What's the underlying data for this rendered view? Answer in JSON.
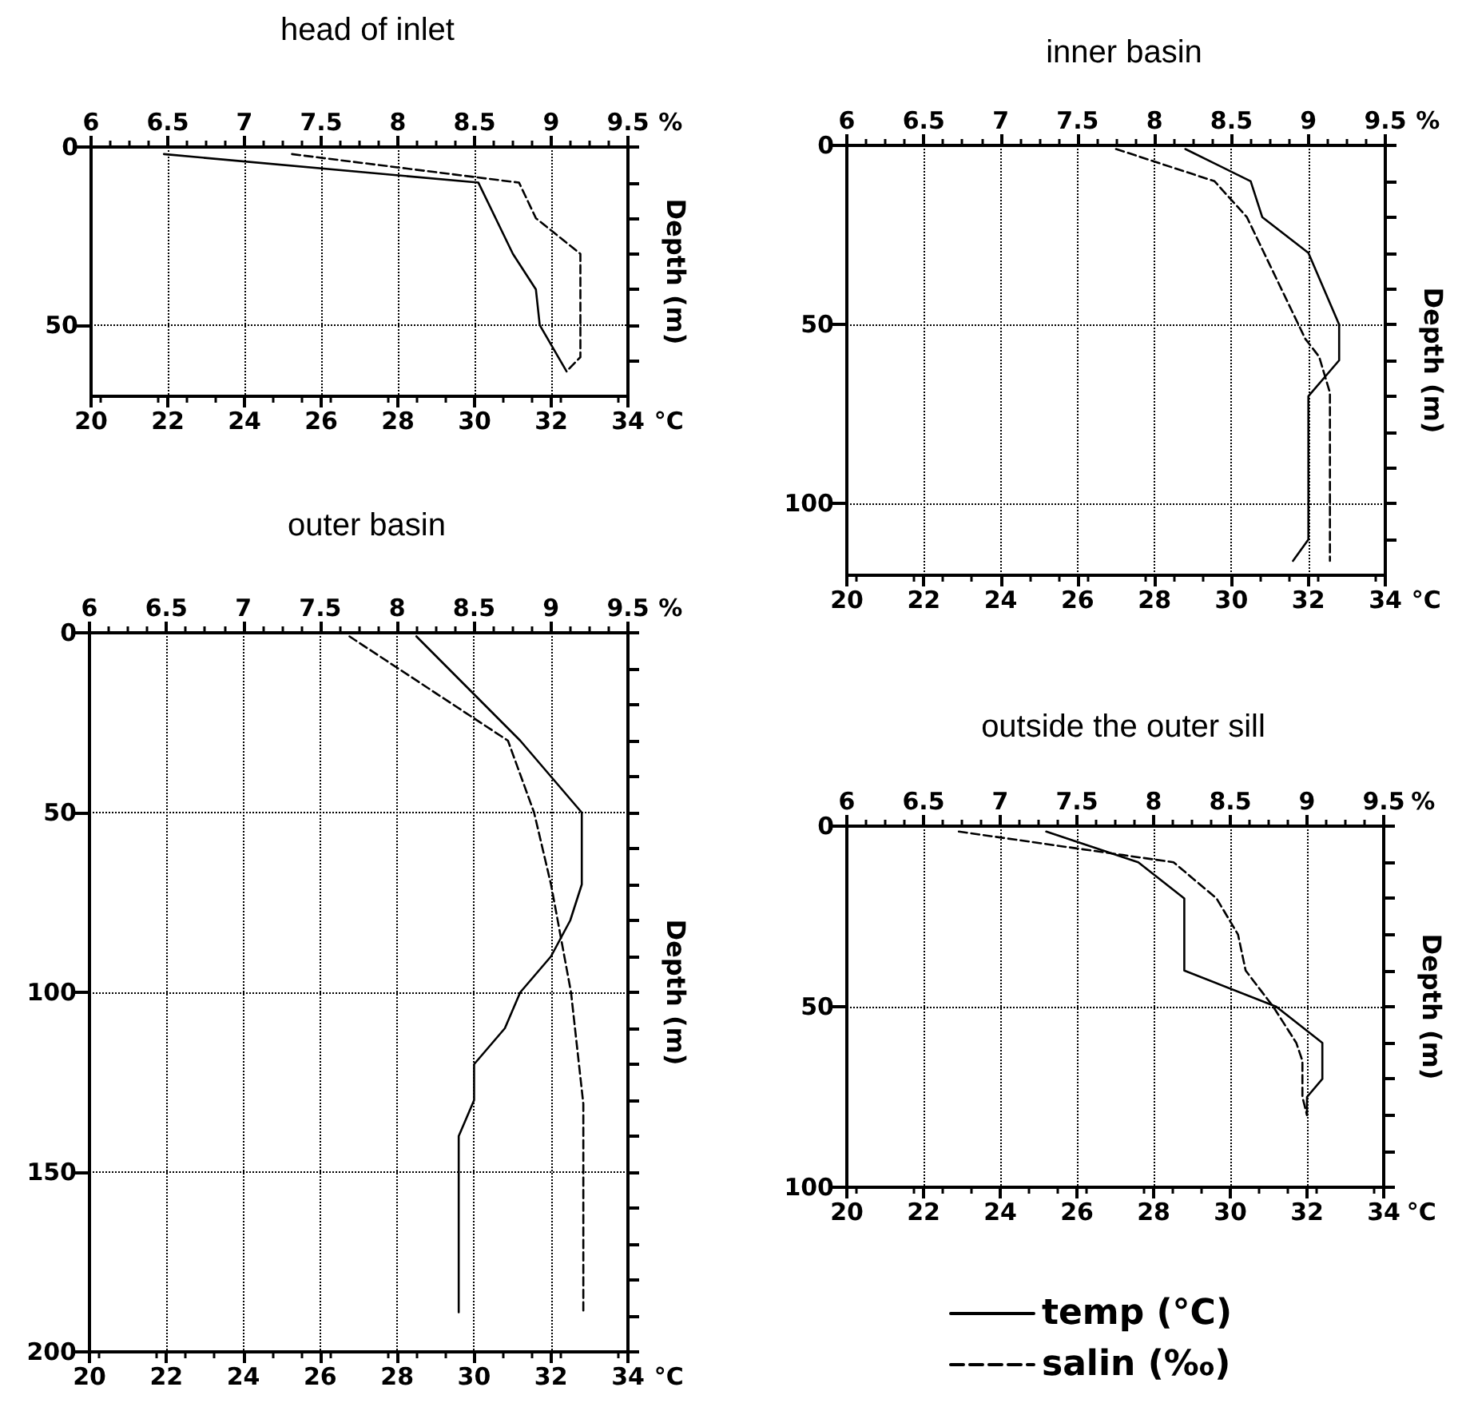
{
  "chart_data": [
    {
      "type": "line",
      "title": "head of inlet",
      "xlabel": "°C",
      "x2label": "%",
      "ylabel": "Depth (m)",
      "xlim": [
        20,
        34
      ],
      "xticks": [
        20,
        22,
        24,
        26,
        28,
        30,
        32,
        34
      ],
      "x2lim": [
        6,
        9.5
      ],
      "x2ticks": [
        6,
        6.5,
        7,
        7.5,
        8,
        8.5,
        9,
        9.5
      ],
      "ylim": [
        70,
        0
      ],
      "yticks": [
        0,
        {
          "value": 10,
          "label": null
        },
        {
          "value": 20,
          "label": null
        },
        {
          "value": 30,
          "label": null
        },
        {
          "value": 40,
          "label": null
        },
        50,
        {
          "value": 60,
          "label": null
        }
      ],
      "grid": true,
      "marker": "none",
      "series": [
        {
          "type": "line",
          "color": "#000000",
          "line_style": "solid",
          "x": [
            21.9,
            30.1,
            31.0,
            31.6,
            31.7,
            32.4
          ],
          "values": [
            2,
            10,
            30,
            40,
            50,
            63
          ]
        },
        {
          "type": "line",
          "color": "#000000",
          "line_style": "dashed",
          "axis": "x2",
          "x": [
            7.31,
            8.79,
            8.9,
            9.19,
            9.19,
            9.1
          ],
          "values": [
            2,
            10,
            20,
            30,
            59,
            63
          ]
        }
      ]
    },
    {
      "type": "line",
      "title": "inner basin",
      "xlabel": "°C",
      "x2label": "%",
      "ylabel": "Depth (m)",
      "xlim": [
        20,
        34
      ],
      "xticks": [
        20,
        22,
        24,
        26,
        28,
        30,
        32,
        34
      ],
      "x2lim": [
        6,
        9.5
      ],
      "x2ticks": [
        6,
        6.5,
        7,
        7.5,
        8,
        8.5,
        9,
        9.5
      ],
      "ylim": [
        120,
        0
      ],
      "yticks": [
        0,
        {
          "value": 10,
          "label": null
        },
        {
          "value": 20,
          "label": null
        },
        {
          "value": 30,
          "label": null
        },
        {
          "value": 40,
          "label": null
        },
        50,
        {
          "value": 60,
          "label": null
        },
        {
          "value": 70,
          "label": null
        },
        {
          "value": 80,
          "label": null
        },
        {
          "value": 90,
          "label": null
        },
        100,
        {
          "value": 110,
          "label": null
        }
      ],
      "grid": true,
      "marker": "none",
      "series": [
        {
          "type": "line",
          "color": "#000000",
          "line_style": "solid",
          "x": [
            28.8,
            30.5,
            30.8,
            32.0,
            32.8,
            32.8,
            32.0,
            32.0,
            31.6
          ],
          "values": [
            1,
            10,
            20,
            30,
            50,
            60,
            70,
            110,
            116
          ]
        },
        {
          "type": "line",
          "color": "#000000",
          "line_style": "dashed",
          "axis": "x2",
          "x": [
            7.75,
            8.39,
            8.6,
            8.98,
            9.07,
            9.14,
            9.14
          ],
          "values": [
            1,
            10,
            20,
            54,
            59,
            69,
            116
          ]
        }
      ]
    },
    {
      "type": "line",
      "title": "outer basin",
      "xlabel": "°C",
      "x2label": "%",
      "ylabel": "Depth (m)",
      "xlim": [
        20,
        34
      ],
      "xticks": [
        20,
        22,
        24,
        26,
        28,
        30,
        32,
        34
      ],
      "x2lim": [
        6,
        9.5
      ],
      "x2ticks": [
        6,
        6.5,
        7,
        7.5,
        8,
        8.5,
        9,
        9.5
      ],
      "ylim": [
        200,
        0
      ],
      "yticks": [
        0,
        {
          "value": 10,
          "label": null
        },
        {
          "value": 20,
          "label": null
        },
        {
          "value": 30,
          "label": null
        },
        {
          "value": 40,
          "label": null
        },
        50,
        {
          "value": 60,
          "label": null
        },
        {
          "value": 70,
          "label": null
        },
        {
          "value": 80,
          "label": null
        },
        {
          "value": 90,
          "label": null
        },
        100,
        {
          "value": 110,
          "label": null
        },
        {
          "value": 120,
          "label": null
        },
        {
          "value": 130,
          "label": null
        },
        {
          "value": 140,
          "label": null
        },
        150,
        {
          "value": 160,
          "label": null
        },
        {
          "value": 170,
          "label": null
        },
        {
          "value": 180,
          "label": null
        },
        {
          "value": 190,
          "label": null
        },
        200
      ],
      "grid": true,
      "marker": "none",
      "series": [
        {
          "type": "line",
          "color": "#000000",
          "line_style": "solid",
          "x": [
            28.5,
            31.2,
            32.8,
            32.8,
            32.5,
            32.0,
            31.2,
            30.8,
            30.0,
            30.0,
            29.6,
            29.6
          ],
          "values": [
            1,
            30,
            50,
            70,
            80,
            90,
            100,
            110,
            120,
            130,
            140,
            189
          ]
        },
        {
          "type": "line",
          "color": "#000000",
          "line_style": "dashed",
          "axis": "x2",
          "x": [
            7.69,
            8.72,
            8.89,
            9.0,
            9.13,
            9.21,
            9.21
          ],
          "values": [
            1,
            30,
            50,
            70,
            100,
            131,
            189
          ]
        }
      ]
    },
    {
      "type": "line",
      "title": "outside the outer sill",
      "xlabel": "°C",
      "x2label": "%",
      "ylabel": "Depth (m)",
      "xlim": [
        20,
        34
      ],
      "xticks": [
        20,
        22,
        24,
        26,
        28,
        30,
        32,
        34
      ],
      "x2lim": [
        6,
        9.5
      ],
      "x2ticks": [
        6,
        6.5,
        7,
        7.5,
        8,
        8.5,
        9,
        9.5
      ],
      "ylim": [
        100,
        0
      ],
      "yticks": [
        0,
        {
          "value": 10,
          "label": null
        },
        {
          "value": 20,
          "label": null
        },
        {
          "value": 30,
          "label": null
        },
        {
          "value": 40,
          "label": null
        },
        50,
        {
          "value": 60,
          "label": null
        },
        {
          "value": 70,
          "label": null
        },
        {
          "value": 80,
          "label": null
        },
        {
          "value": 90,
          "label": null
        },
        100
      ],
      "grid": true,
      "marker": "none",
      "legend": "bottom",
      "series": [
        {
          "type": "line",
          "name": "temp (°C)",
          "color": "#000000",
          "line_style": "solid",
          "x": [
            25.2,
            27.6,
            28.8,
            28.8,
            31.2,
            32.4,
            32.4,
            32.0,
            32.0
          ],
          "values": [
            1.5,
            10,
            20,
            40,
            50,
            60,
            70,
            75,
            80
          ]
        },
        {
          "type": "line",
          "name": "salin (‰)",
          "color": "#000000",
          "line_style": "dashed",
          "axis": "x2",
          "x": [
            6.73,
            7.8,
            8.13,
            8.41,
            8.55,
            8.6,
            8.78,
            8.93,
            8.97,
            8.97,
            9.0
          ],
          "values": [
            1.5,
            8,
            10,
            20,
            30,
            40,
            50,
            60,
            65,
            75,
            80
          ]
        }
      ]
    }
  ]
}
